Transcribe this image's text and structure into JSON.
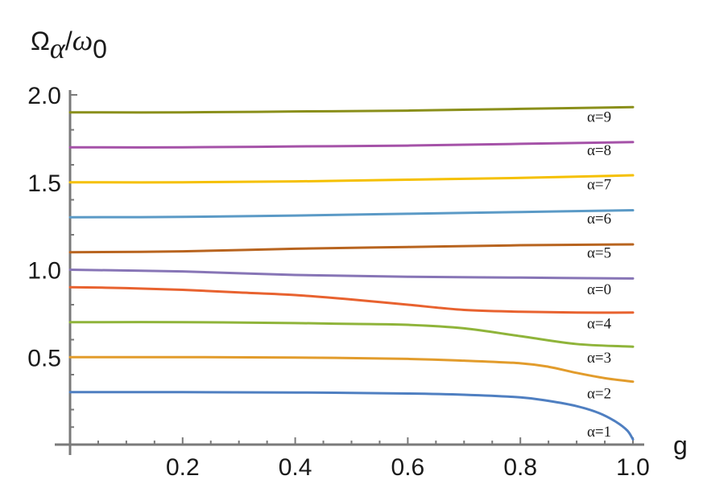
{
  "chart_data": {
    "type": "line",
    "title": "",
    "xlabel": "g",
    "ylabel": "Ω_α/ω_0",
    "ylabel_parts": {
      "omega": "Ω",
      "sub": "α",
      "slash": "/",
      "omega0": "ω",
      "sub0": "0"
    },
    "xlim": [
      0,
      1.0
    ],
    "ylim": [
      0,
      2.0
    ],
    "x_ticks": [
      "0.2",
      "0.4",
      "0.6",
      "0.8",
      "1.0"
    ],
    "x_tick_values": [
      0.2,
      0.4,
      0.6,
      0.8,
      1.0
    ],
    "y_ticks": [
      "0.5",
      "1.0",
      "1.5",
      "2.0"
    ],
    "y_tick_values": [
      0.5,
      1.0,
      1.5,
      2.0
    ],
    "grid": false,
    "legend": "none",
    "series": [
      {
        "name": "α=9",
        "color": "#8a8f1a",
        "x": [
          0,
          0.2,
          0.4,
          0.6,
          0.8,
          1.0
        ],
        "y": [
          1.9,
          1.9,
          1.905,
          1.91,
          1.92,
          1.93
        ]
      },
      {
        "name": "α=8",
        "color": "#a552a8",
        "x": [
          0,
          0.2,
          0.4,
          0.6,
          0.8,
          1.0
        ],
        "y": [
          1.7,
          1.7,
          1.705,
          1.71,
          1.72,
          1.73
        ]
      },
      {
        "name": "α=7",
        "color": "#f5c000",
        "x": [
          0,
          0.2,
          0.4,
          0.6,
          0.8,
          1.0
        ],
        "y": [
          1.5,
          1.5,
          1.505,
          1.515,
          1.525,
          1.54
        ]
      },
      {
        "name": "α=6",
        "color": "#5b9ac6",
        "x": [
          0,
          0.2,
          0.4,
          0.6,
          0.8,
          1.0
        ],
        "y": [
          1.3,
          1.302,
          1.31,
          1.32,
          1.33,
          1.34
        ]
      },
      {
        "name": "α=5",
        "color": "#b8641f",
        "x": [
          0,
          0.2,
          0.4,
          0.6,
          0.8,
          1.0
        ],
        "y": [
          1.1,
          1.105,
          1.12,
          1.13,
          1.14,
          1.145
        ]
      },
      {
        "name": "α=0",
        "color": "#8775b6",
        "x": [
          0,
          0.2,
          0.4,
          0.6,
          0.8,
          1.0
        ],
        "y": [
          1.0,
          0.99,
          0.97,
          0.96,
          0.955,
          0.95
        ]
      },
      {
        "name": "α=4",
        "color": "#e8622f",
        "x": [
          0,
          0.1,
          0.2,
          0.3,
          0.4,
          0.5,
          0.6,
          0.7,
          0.8,
          0.9,
          1.0
        ],
        "y": [
          0.9,
          0.895,
          0.885,
          0.87,
          0.855,
          0.83,
          0.8,
          0.77,
          0.76,
          0.755,
          0.755
        ]
      },
      {
        "name": "α=3",
        "color": "#8fb43a",
        "x": [
          0,
          0.2,
          0.4,
          0.5,
          0.6,
          0.7,
          0.8,
          0.9,
          1.0
        ],
        "y": [
          0.7,
          0.7,
          0.695,
          0.69,
          0.685,
          0.665,
          0.62,
          0.575,
          0.56
        ]
      },
      {
        "name": "α=2",
        "color": "#e29c2c",
        "x": [
          0,
          0.2,
          0.4,
          0.6,
          0.7,
          0.8,
          0.85,
          0.9,
          0.95,
          1.0
        ],
        "y": [
          0.5,
          0.5,
          0.498,
          0.49,
          0.48,
          0.465,
          0.445,
          0.41,
          0.38,
          0.36
        ]
      },
      {
        "name": "α=1",
        "color": "#4f7fc1",
        "x": [
          0,
          0.2,
          0.4,
          0.6,
          0.7,
          0.8,
          0.85,
          0.9,
          0.94,
          0.97,
          0.99,
          1.0
        ],
        "y": [
          0.3,
          0.3,
          0.298,
          0.292,
          0.285,
          0.27,
          0.25,
          0.22,
          0.18,
          0.13,
          0.08,
          0.03
        ]
      }
    ],
    "series_labels": [
      {
        "text": "α=9",
        "gx": 0.94,
        "gy": 1.845
      },
      {
        "text": "α=8",
        "gx": 0.94,
        "gy": 1.655
      },
      {
        "text": "α=7",
        "gx": 0.94,
        "gy": 1.46
      },
      {
        "text": "α=6",
        "gx": 0.94,
        "gy": 1.265
      },
      {
        "text": "α=5",
        "gx": 0.94,
        "gy": 1.07
      },
      {
        "text": "α=0",
        "gx": 0.94,
        "gy": 0.86
      },
      {
        "text": "α=4",
        "gx": 0.94,
        "gy": 0.665
      },
      {
        "text": "α=3",
        "gx": 0.94,
        "gy": 0.47
      },
      {
        "text": "α=2",
        "gx": 0.94,
        "gy": 0.265
      },
      {
        "text": "α=1",
        "gx": 0.94,
        "gy": 0.045
      }
    ]
  }
}
